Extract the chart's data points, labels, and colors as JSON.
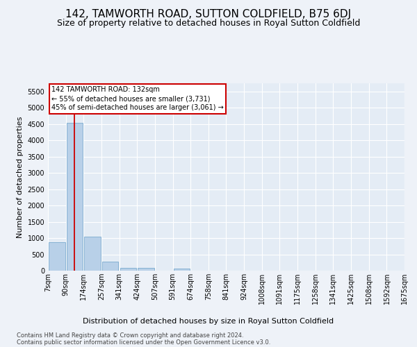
{
  "title": "142, TAMWORTH ROAD, SUTTON COLDFIELD, B75 6DJ",
  "subtitle": "Size of property relative to detached houses in Royal Sutton Coldfield",
  "xlabel": "Distribution of detached houses by size in Royal Sutton Coldfield",
  "ylabel": "Number of detached properties",
  "footer_line1": "Contains HM Land Registry data © Crown copyright and database right 2024.",
  "footer_line2": "Contains public sector information licensed under the Open Government Licence v3.0.",
  "annotation_title": "142 TAMWORTH ROAD: 132sqm",
  "annotation_line2": "← 55% of detached houses are smaller (3,731)",
  "annotation_line3": "45% of semi-detached houses are larger (3,061) →",
  "bar_color": "#b8d0e8",
  "bar_edge_color": "#7aaace",
  "property_line_color": "#cc0000",
  "property_size_sqm": 132,
  "categories": [
    "7sqm",
    "90sqm",
    "174sqm",
    "257sqm",
    "341sqm",
    "424sqm",
    "507sqm",
    "591sqm",
    "674sqm",
    "758sqm",
    "841sqm",
    "924sqm",
    "1008sqm",
    "1091sqm",
    "1175sqm",
    "1258sqm",
    "1341sqm",
    "1425sqm",
    "1508sqm",
    "1592sqm",
    "1675sqm"
  ],
  "bin_edges": [
    7,
    90,
    174,
    257,
    341,
    424,
    507,
    591,
    674,
    758,
    841,
    924,
    1008,
    1091,
    1175,
    1258,
    1341,
    1425,
    1508,
    1592,
    1675
  ],
  "values": [
    880,
    4540,
    1050,
    280,
    95,
    95,
    0,
    60,
    0,
    0,
    0,
    0,
    0,
    0,
    0,
    0,
    0,
    0,
    0,
    0
  ],
  "ylim": [
    0,
    5750
  ],
  "yticks": [
    0,
    500,
    1000,
    1500,
    2000,
    2500,
    3000,
    3500,
    4000,
    4500,
    5000,
    5500
  ],
  "background_color": "#eef2f8",
  "plot_bg_color": "#e4ecf5",
  "grid_color": "#ffffff",
  "title_fontsize": 11,
  "subtitle_fontsize": 9,
  "ylabel_fontsize": 8,
  "xlabel_fontsize": 8,
  "tick_fontsize": 7,
  "footer_fontsize": 6,
  "annotation_box_color": "#cc0000",
  "annotation_fill": "#ffffff",
  "annotation_fontsize": 7
}
